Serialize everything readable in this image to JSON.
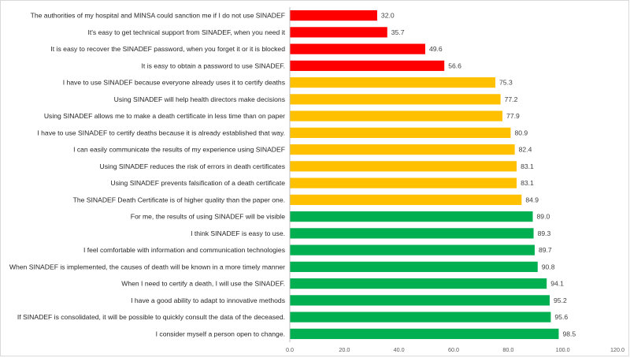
{
  "chart_data": {
    "type": "bar",
    "orientation": "horizontal",
    "title": "",
    "xlabel": "",
    "ylabel": "",
    "xlim": [
      0,
      120
    ],
    "ticks": [
      "0.0",
      "20.0",
      "40.0",
      "60.0",
      "80.0",
      "100.0",
      "120.0"
    ],
    "tick_values": [
      0,
      20,
      40,
      60,
      80,
      100,
      120
    ],
    "grid": false,
    "legend": "none",
    "colors": {
      "red": "#ff0000",
      "yellow": "#ffc000",
      "green": "#00b050"
    },
    "categories": [
      "The authorities of my hospital and MINSA could sanction me if I do not use SINADEF",
      "It's easy to get technical support from SINADEF, when you need it",
      "It is easy to recover the SINADEF password, when you forget it or it is blocked",
      "It is easy to obtain a password to use SINADEF.",
      "I have to use SINADEF because everyone already uses it to certify deaths",
      "Using SINADEF will help health directors make decisions",
      "Using SINADEF allows me to make a death certificate in less time than on paper",
      "I have to use SINADEF to certify deaths because it is already established that way.",
      "I can easily communicate the results of my experience using SINADEF",
      "Using SINADEF reduces the risk of errors in death certificates",
      "Using SINADEF prevents falsification of a death certificate",
      "The SINADEF Death Certificate is of higher quality than the paper one.",
      "For me, the results of using SINADEF will be visible",
      "I think SINADEF is easy to use.",
      "I feel comfortable with information and communication technologies",
      "When SINADEF is implemented, the causes of death will be known in a more timely manner",
      "When I need to certify a death, I will use the SINADEF.",
      "I have a good ability to adapt to innovative methods",
      "If SINADEF is consolidated, it will be possible to quickly consult the data of the deceased.",
      "I consider myself a person open to change."
    ],
    "values": [
      32.0,
      35.7,
      49.6,
      56.6,
      75.3,
      77.2,
      77.9,
      80.9,
      82.4,
      83.1,
      83.1,
      84.9,
      89.0,
      89.3,
      89.7,
      90.8,
      94.1,
      95.2,
      95.6,
      98.5
    ],
    "value_labels": [
      "32.0",
      "35.7",
      "49.6",
      "56.6",
      "75.3",
      "77.2",
      "77.9",
      "80.9",
      "82.4",
      "83.1",
      "83.1",
      "84.9",
      "89.0",
      "89.3",
      "89.7",
      "90.8",
      "94.1",
      "95.2",
      "95.6",
      "98.5"
    ],
    "bar_colors": [
      "red",
      "red",
      "red",
      "red",
      "yellow",
      "yellow",
      "yellow",
      "yellow",
      "yellow",
      "yellow",
      "yellow",
      "yellow",
      "green",
      "green",
      "green",
      "green",
      "green",
      "green",
      "green",
      "green"
    ]
  }
}
